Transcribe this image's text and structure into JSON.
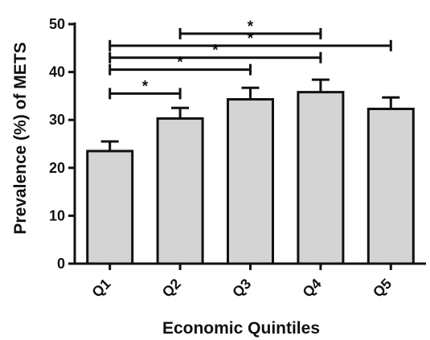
{
  "chart_data": {
    "type": "bar",
    "categories": [
      "Q1",
      "Q2",
      "Q3",
      "Q4",
      "Q5"
    ],
    "values": [
      23.5,
      30.3,
      34.3,
      35.8,
      32.3
    ],
    "errors": [
      2.0,
      2.2,
      2.4,
      2.6,
      2.4
    ],
    "xlabel": "Economic Quintiles",
    "ylabel": "Prevalence (%) of METS",
    "ylim": [
      0,
      50
    ],
    "yticks": [
      0,
      10,
      20,
      30,
      40,
      50
    ],
    "bar_color": "#d4d4d4",
    "grid": false,
    "significance": [
      {
        "from": "Q2",
        "to": "Q4",
        "label": "*"
      },
      {
        "from": "Q1",
        "to": "Q5",
        "label": "*"
      },
      {
        "from": "Q1",
        "to": "Q4",
        "label": "*"
      },
      {
        "from": "Q1",
        "to": "Q3",
        "label": "*"
      },
      {
        "from": "Q1",
        "to": "Q2",
        "label": "*"
      }
    ]
  }
}
